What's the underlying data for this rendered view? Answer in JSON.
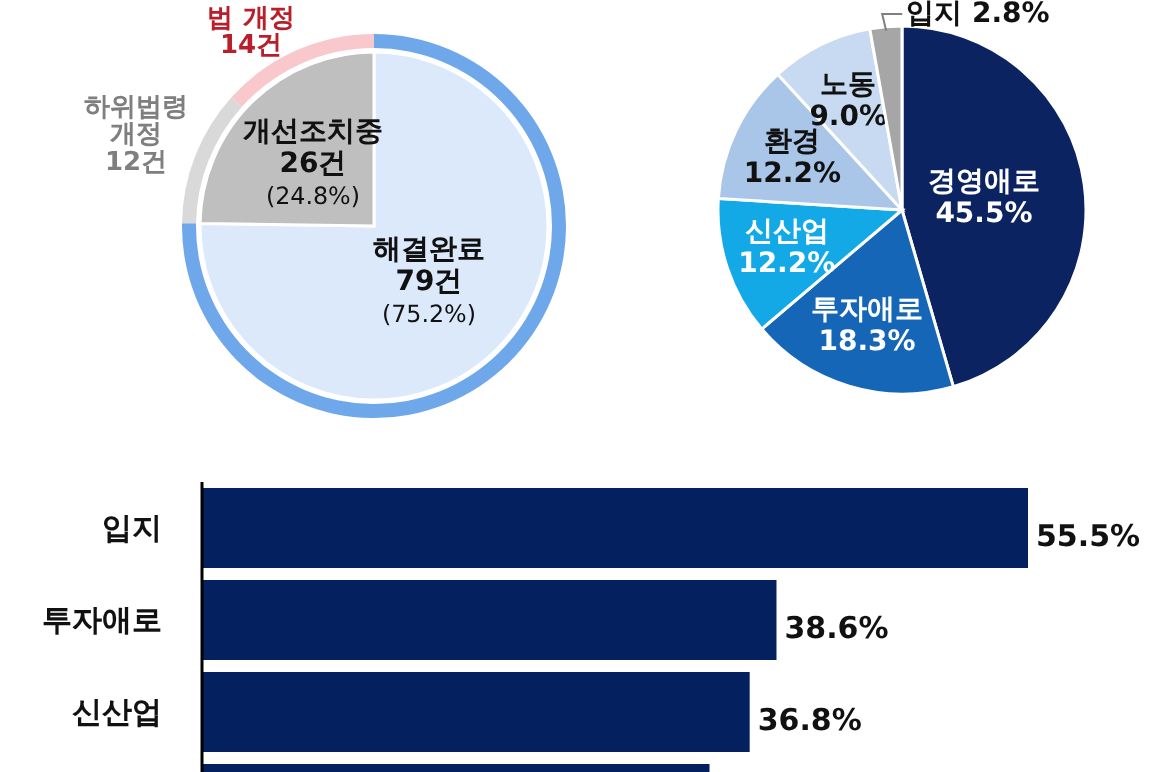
{
  "chart_data": [
    {
      "type": "pie",
      "categories": [
        "해결완료",
        "개선조치중"
      ],
      "values": [
        79,
        26
      ],
      "colors": [
        "#dbe9fb",
        "#bfbfbf"
      ],
      "value_labels": [
        "79건\n(75.2%)",
        "26건\n(24.8%)"
      ]
    },
    {
      "type": "donut",
      "categories": [
        null,
        "하위법령\n개정",
        "법 개정"
      ],
      "values": [
        79,
        12,
        14
      ],
      "colors": [
        "#6fa8ea",
        "#d9d9d9",
        "#f8c8cc"
      ],
      "value_labels": [
        null,
        "12건",
        "14건"
      ]
    },
    {
      "type": "pie",
      "categories": [
        "경영애로",
        "투자애로",
        "신산업",
        "환경",
        "노동",
        "입지"
      ],
      "values": [
        45.5,
        18.3,
        12.2,
        12.2,
        9.0,
        2.8
      ],
      "colors": [
        "#0b2360",
        "#1666b8",
        "#12a9e6",
        "#a9c6e8",
        "#c7daf1",
        "#a6a6a6"
      ],
      "value_labels": [
        "45.5%",
        "18.3%",
        "12.2%",
        "12.2%",
        "9.0%",
        "2.8%"
      ]
    },
    {
      "type": "bar",
      "orientation": "horizontal",
      "categories": [
        "입지",
        "투자애로",
        "신산업",
        null
      ],
      "values": [
        55.5,
        38.6,
        36.8,
        34.1
      ],
      "color": "#04205f",
      "value_labels": [
        "55.5%",
        "38.6%",
        "36.8%",
        null
      ]
    }
  ]
}
